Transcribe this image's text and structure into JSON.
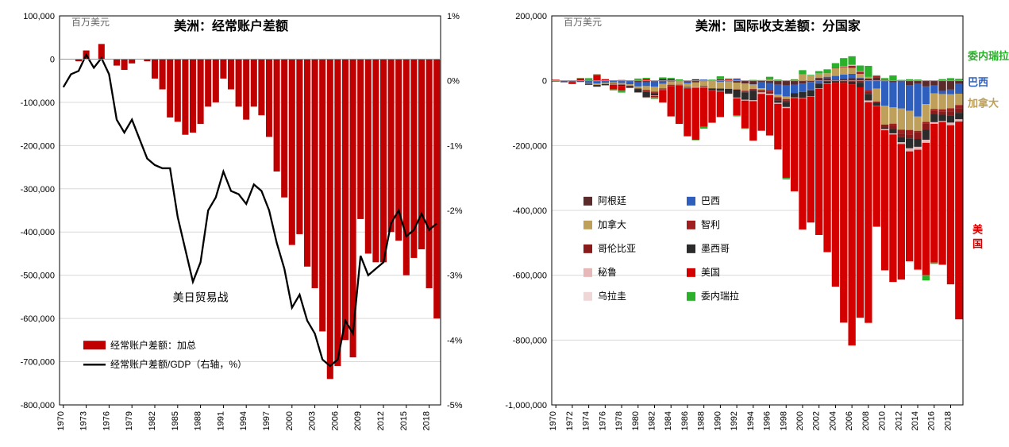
{
  "left_chart": {
    "type": "bar+line",
    "title": "美洲：经常账户差额",
    "unit_label": "百万美元",
    "annotation": "美日贸易战",
    "annotation_year": 1988,
    "ylim_left": [
      -800000,
      100000
    ],
    "ytick_step_left": 100000,
    "ylim_right": [
      -5,
      1
    ],
    "ytick_step_right": 1,
    "years": [
      1970,
      1971,
      1972,
      1973,
      1974,
      1975,
      1976,
      1977,
      1978,
      1979,
      1980,
      1981,
      1982,
      1983,
      1984,
      1985,
      1986,
      1987,
      1988,
      1989,
      1990,
      1991,
      1992,
      1993,
      1994,
      1995,
      1996,
      1997,
      1998,
      1999,
      2000,
      2001,
      2002,
      2003,
      2004,
      2005,
      2006,
      2007,
      2008,
      2009,
      2010,
      2011,
      2012,
      2013,
      2014,
      2015,
      2016,
      2017,
      2018,
      2019
    ],
    "xticks": [
      1970,
      1973,
      1976,
      1979,
      1982,
      1985,
      1988,
      1991,
      1994,
      1997,
      2000,
      2003,
      2006,
      2009,
      2012,
      2015,
      2018
    ],
    "bars": [
      0,
      0,
      -5000,
      20000,
      0,
      35000,
      0,
      -15000,
      -25000,
      -10000,
      0,
      -5000,
      -45000,
      -70000,
      -135000,
      -145000,
      -175000,
      -170000,
      -150000,
      -110000,
      -100000,
      -45000,
      -70000,
      -110000,
      -140000,
      -110000,
      -130000,
      -180000,
      -260000,
      -320000,
      -430000,
      -405000,
      -480000,
      -530000,
      -630000,
      -740000,
      -710000,
      -650000,
      -690000,
      -370000,
      -450000,
      -470000,
      -470000,
      -400000,
      -420000,
      -500000,
      -460000,
      -440000,
      -530000,
      -600000
    ],
    "bar_color": "#c00000",
    "line": [
      -0.1,
      0.1,
      0.15,
      0.4,
      0.2,
      0.35,
      0.1,
      -0.6,
      -0.8,
      -0.6,
      -0.9,
      -1.2,
      -1.3,
      -1.35,
      -1.35,
      -2.1,
      -2.6,
      -3.1,
      -2.8,
      -2.0,
      -1.8,
      -1.4,
      -1.7,
      -1.75,
      -1.9,
      -1.6,
      -1.7,
      -2.0,
      -2.5,
      -2.9,
      -3.5,
      -3.3,
      -3.7,
      -3.9,
      -4.3,
      -4.4,
      -4.3,
      -3.7,
      -3.9,
      -2.7,
      -3.0,
      -2.9,
      -2.8,
      -2.2,
      -2.0,
      -2.4,
      -2.3,
      -2.05,
      -2.3,
      -2.2
    ],
    "line_color": "#000000",
    "legend": [
      {
        "type": "bar",
        "color": "#c00000",
        "label": "经常账户差额：加总"
      },
      {
        "type": "line",
        "color": "#000000",
        "label": "经常账户差额/GDP（右轴，%）"
      }
    ],
    "background_color": "#ffffff",
    "grid_color": "#d9d9d9",
    "axis_color": "#000000"
  },
  "right_chart": {
    "type": "stacked-bar",
    "title": "美洲：国际收支差额：分国家",
    "unit_label": "百万美元",
    "ylim": [
      -1000000,
      200000
    ],
    "ytick_step": 200000,
    "years": [
      1970,
      1971,
      1972,
      1973,
      1974,
      1975,
      1976,
      1977,
      1978,
      1979,
      1980,
      1981,
      1982,
      1983,
      1984,
      1985,
      1986,
      1987,
      1988,
      1989,
      1990,
      1991,
      1992,
      1993,
      1994,
      1995,
      1996,
      1997,
      1998,
      1999,
      2000,
      2001,
      2002,
      2003,
      2004,
      2005,
      2006,
      2007,
      2008,
      2009,
      2010,
      2011,
      2012,
      2013,
      2014,
      2015,
      2016,
      2017,
      2018,
      2019
    ],
    "xticks": [
      1970,
      1972,
      1974,
      1976,
      1978,
      1980,
      1982,
      1984,
      1986,
      1988,
      1990,
      1992,
      1994,
      1996,
      1998,
      2000,
      2002,
      2004,
      2006,
      2008,
      2010,
      2012,
      2014,
      2016,
      2018
    ],
    "series": [
      {
        "name": "阿根廷",
        "color": "#5b2a2a",
        "label": "阿根廷"
      },
      {
        "name": "巴西",
        "color": "#2e5fbf",
        "label": "巴西"
      },
      {
        "name": "加拿大",
        "color": "#bfa05a",
        "label": "加拿大"
      },
      {
        "name": "智利",
        "color": "#a02020",
        "label": "智利"
      },
      {
        "name": "哥伦比亚",
        "color": "#8b1a1a",
        "label": "哥伦比亚"
      },
      {
        "name": "墨西哥",
        "color": "#2b2b2b",
        "label": "墨西哥"
      },
      {
        "name": "秘鲁",
        "color": "#e6b8b8",
        "label": "秘鲁"
      },
      {
        "name": "美国",
        "color": "#d40000",
        "label": "美国"
      },
      {
        "name": "乌拉圭",
        "color": "#f0d7d7",
        "label": "乌拉圭"
      },
      {
        "name": "委内瑞拉",
        "color": "#2ab02a",
        "label": "委内瑞拉"
      }
    ],
    "data": {
      "美国": [
        2000,
        -1000,
        -6000,
        7000,
        2000,
        18000,
        4000,
        -14000,
        -15000,
        -300,
        2000,
        5000,
        -5000,
        -39000,
        -94000,
        -118000,
        -147000,
        -161000,
        -121000,
        -99000,
        -79000,
        3000,
        -52000,
        -85000,
        -122000,
        -114000,
        -125000,
        -141000,
        -215000,
        -288000,
        -404000,
        -389000,
        -451000,
        -519000,
        -629000,
        -740000,
        -806000,
        -711000,
        -681000,
        -372000,
        -432000,
        -455000,
        -418000,
        -339000,
        -370000,
        -408000,
        -428000,
        -440000,
        -491000,
        -610000
      ],
      "加拿大": [
        1000,
        400,
        -400,
        100,
        -1500,
        -4700,
        -3800,
        -4000,
        -4300,
        -4100,
        -6000,
        -12000,
        -15000,
        -14000,
        -10000,
        -11000,
        -11000,
        -13000,
        -15000,
        -22000,
        -20000,
        -23000,
        -21000,
        -22000,
        -13000,
        -5000,
        3400,
        -8200,
        -8000,
        1700,
        20000,
        16000,
        13000,
        11000,
        23000,
        22000,
        18000,
        12000,
        5000,
        -40000,
        -58000,
        -50000,
        -65000,
        -59000,
        -44000,
        -55000,
        -48000,
        -47000,
        -43000,
        -35000
      ],
      "巴西": [
        -840,
        -1630,
        -1690,
        -2080,
        -7510,
        -6970,
        -6550,
        -5110,
        -6990,
        -10480,
        -12810,
        -11750,
        -16310,
        -6840,
        30,
        -250,
        -5300,
        -1440,
        4180,
        1030,
        -3820,
        -1450,
        6090,
        -680,
        -1150,
        -18140,
        -23250,
        -30490,
        -33830,
        -25870,
        -24790,
        -23720,
        -7640,
        4180,
        11680,
        13980,
        13640,
        1550,
        -28190,
        -24300,
        -75760,
        -77030,
        -83800,
        -79790,
        -101430,
        -54470,
        -24010,
        -9760,
        -14510,
        -30000
      ],
      "墨西哥": [
        -1190,
        -930,
        -1010,
        -1530,
        -3230,
        -4440,
        -3680,
        -1850,
        -3170,
        -5460,
        -10420,
        -16240,
        -5890,
        5860,
        4240,
        800,
        -1380,
        4240,
        -2370,
        -5820,
        -7450,
        -14650,
        -24440,
        -23390,
        -29660,
        -1580,
        -2510,
        -7660,
        -15990,
        -13950,
        -18770,
        -17710,
        -14160,
        -7190,
        -5190,
        -4380,
        -7860,
        -14410,
        -20190,
        -8340,
        -5130,
        -13320,
        -16020,
        -30870,
        -24310,
        -30640,
        -24290,
        -20040,
        -22210,
        -20000
      ],
      "阿根廷": [
        -160,
        -390,
        -220,
        720,
        130,
        -1280,
        650,
        1290,
        1830,
        -550,
        -4770,
        -4710,
        -2360,
        -2440,
        -2390,
        -950,
        -2860,
        -4240,
        -1570,
        -1310,
        4550,
        -650,
        -5660,
        -8210,
        -11160,
        -5210,
        -6880,
        -12240,
        -14600,
        -11960,
        -8950,
        -3780,
        8720,
        8140,
        3210,
        5270,
        7710,
        7350,
        6760,
        10990,
        -1620,
        -5340,
        -2140,
        -13120,
        -9180,
        -17620,
        -15100,
        -31320,
        -27480,
        -10000
      ],
      "智利": [
        -100,
        -200,
        -400,
        -290,
        -210,
        -490,
        150,
        -550,
        -1090,
        -1190,
        -1970,
        -4730,
        -2300,
        -1120,
        -2110,
        -1410,
        -1190,
        -740,
        -230,
        -690,
        -490,
        -100,
        -960,
        -2550,
        -1590,
        -1350,
        -3080,
        -3660,
        -3920,
        80,
        -900,
        -1100,
        -590,
        -780,
        2560,
        1890,
        6840,
        7110,
        -5800,
        3520,
        2570,
        -6830,
        -11840,
        -13260,
        -5230,
        -5740,
        -4970,
        -6450,
        -9160,
        -10000
      ],
      "哥伦比亚": [
        -290,
        -450,
        -200,
        -60,
        -350,
        -130,
        190,
        390,
        330,
        510,
        -200,
        -1960,
        -3050,
        -3000,
        -1400,
        -1590,
        380,
        340,
        -220,
        -200,
        540,
        2360,
        870,
        -2100,
        -3670,
        -4620,
        -4640,
        -5750,
        -4860,
        670,
        770,
        -1090,
        -1360,
        -970,
        -910,
        -1890,
        -2990,
        -5980,
        -6700,
        -4960,
        -8760,
        -9850,
        -11130,
        -12500,
        -19760,
        -18560,
        -11560,
        -10290,
        -12830,
        -14000
      ],
      "秘鲁": [
        150,
        -35,
        -30,
        -190,
        -810,
        -1540,
        -1070,
        -930,
        -190,
        720,
        -100,
        -1730,
        -1610,
        -870,
        -220,
        100,
        -1400,
        -2070,
        -1820,
        -570,
        -1420,
        -1510,
        -2100,
        -2460,
        -2700,
        -4620,
        -3640,
        -3370,
        -3340,
        -1380,
        -1550,
        -1200,
        -1095,
        -950,
        60,
        1150,
        2870,
        1520,
        -5280,
        -720,
        -3550,
        -3350,
        -5240,
        -9390,
        -8930,
        -9530,
        -5060,
        -2780,
        -8040,
        -7000
      ],
      "乌拉圭": [
        -50,
        -60,
        60,
        40,
        -110,
        -190,
        -70,
        -170,
        -130,
        -350,
        -710,
        -460,
        -240,
        -60,
        -130,
        -100,
        40,
        -140,
        20,
        130,
        190,
        40,
        -10,
        -240,
        -440,
        -210,
        -230,
        -290,
        -480,
        -510,
        -570,
        -490,
        380,
        -80,
        0,
        40,
        -390,
        -220,
        -1730,
        -380,
        -730,
        -1560,
        -2690,
        -2890,
        -2580,
        -500,
        410,
        700,
        -70,
        0
      ],
      "委内瑞拉": [
        -100,
        -10,
        -100,
        880,
        5760,
        2160,
        250,
        -3180,
        -5740,
        350,
        4730,
        4000,
        -4250,
        4430,
        4650,
        3330,
        -2250,
        -1390,
        -5810,
        2160,
        8280,
        1740,
        -3750,
        -1990,
        2540,
        2010,
        8820,
        3470,
        -4430,
        2110,
        11850,
        1980,
        7600,
        11800,
        13800,
        25450,
        26460,
        17360,
        34100,
        2260,
        5590,
        16340,
        2590,
        4600,
        3600,
        -16050,
        -3870,
        4280,
        8000,
        6000
      ]
    },
    "side_labels": [
      {
        "text": "委内瑞拉",
        "color": "#2ab02a",
        "y_value": 65000
      },
      {
        "text": "巴西",
        "color": "#2e5fbf",
        "y_value": -15000
      },
      {
        "text": "加拿大",
        "color": "#bfa05a",
        "y_value": -80000
      },
      {
        "text": "美国",
        "color": "#d40000",
        "y_value": -470000,
        "vertical": true
      }
    ],
    "background_color": "#ffffff",
    "grid_color": "#d9d9d9",
    "axis_color": "#000000"
  }
}
